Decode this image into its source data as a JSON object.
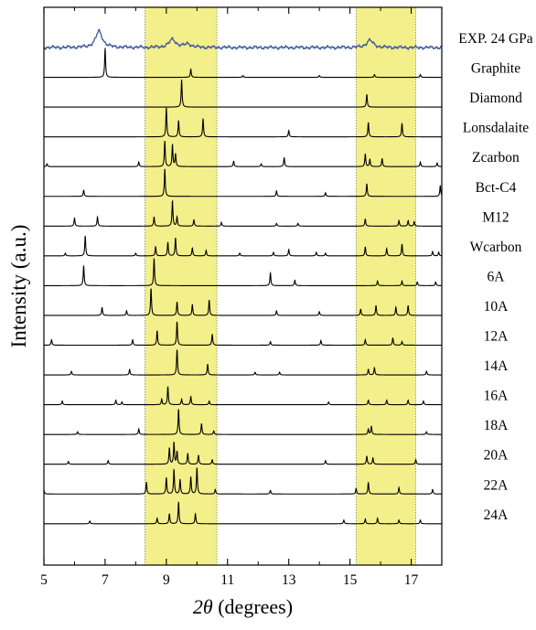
{
  "chart_data": {
    "type": "line",
    "xlabel": "2θ (degrees)",
    "ylabel": "Intensity  (a.u.)",
    "xlim": [
      5,
      18
    ],
    "xticks": [
      5,
      7,
      9,
      11,
      13,
      15,
      17
    ],
    "minor_xticks": [
      6,
      8,
      10,
      12,
      14,
      16
    ],
    "highlight_bands": [
      {
        "from": 8.3,
        "to": 10.65,
        "color": "#f3ef8a"
      },
      {
        "from": 15.2,
        "to": 17.15,
        "color": "#f3ef8a"
      }
    ],
    "grid": false,
    "series": [
      {
        "name": "EXP. 24 GPa",
        "color": "#3d5a9e",
        "kind": "experimental",
        "peaks": [
          [
            6.8,
            18
          ],
          [
            9.2,
            9
          ],
          [
            9.7,
            4
          ],
          [
            15.65,
            8
          ]
        ]
      },
      {
        "name": "Graphite",
        "color": "#000000",
        "peaks": [
          [
            7.0,
            32
          ],
          [
            9.8,
            9
          ],
          [
            11.5,
            2
          ],
          [
            14.0,
            2
          ],
          [
            15.8,
            3
          ],
          [
            17.3,
            3
          ]
        ]
      },
      {
        "name": "Diamond",
        "color": "#000000",
        "peaks": [
          [
            9.5,
            30
          ],
          [
            15.55,
            14
          ]
        ]
      },
      {
        "name": "Lonsdalaite",
        "color": "#000000",
        "peaks": [
          [
            9.0,
            32
          ],
          [
            9.4,
            18
          ],
          [
            10.2,
            20
          ],
          [
            13.0,
            7
          ],
          [
            15.6,
            16
          ],
          [
            16.7,
            15
          ]
        ]
      },
      {
        "name": "Zcarbon",
        "color": "#000000",
        "peaks": [
          [
            5.1,
            3
          ],
          [
            8.1,
            5
          ],
          [
            8.95,
            28
          ],
          [
            9.2,
            24
          ],
          [
            9.3,
            14
          ],
          [
            11.2,
            6
          ],
          [
            12.1,
            3
          ],
          [
            12.85,
            10
          ],
          [
            15.5,
            14
          ],
          [
            15.65,
            8
          ],
          [
            16.05,
            9
          ],
          [
            17.3,
            5
          ],
          [
            17.85,
            4
          ]
        ]
      },
      {
        "name": "Bct-C4",
        "color": "#000000",
        "peaks": [
          [
            6.3,
            7
          ],
          [
            8.95,
            30
          ],
          [
            12.6,
            6
          ],
          [
            14.2,
            4
          ],
          [
            15.55,
            14
          ],
          [
            17.95,
            12
          ]
        ]
      },
      {
        "name": "M12",
        "color": "#000000",
        "peaks": [
          [
            6.0,
            9
          ],
          [
            6.75,
            10
          ],
          [
            8.6,
            10
          ],
          [
            9.2,
            28
          ],
          [
            9.35,
            10
          ],
          [
            9.9,
            7
          ],
          [
            10.8,
            4
          ],
          [
            12.6,
            3
          ],
          [
            13.3,
            3
          ],
          [
            15.5,
            8
          ],
          [
            16.6,
            6
          ],
          [
            16.9,
            6
          ],
          [
            17.1,
            5
          ]
        ]
      },
      {
        "name": "Wcarbon",
        "color": "#000000",
        "peaks": [
          [
            5.7,
            3
          ],
          [
            6.35,
            22
          ],
          [
            8.0,
            3
          ],
          [
            8.65,
            10
          ],
          [
            9.05,
            15
          ],
          [
            9.3,
            20
          ],
          [
            9.85,
            9
          ],
          [
            10.3,
            6
          ],
          [
            11.4,
            3
          ],
          [
            12.5,
            4
          ],
          [
            13.0,
            7
          ],
          [
            13.9,
            4
          ],
          [
            14.2,
            3
          ],
          [
            15.5,
            10
          ],
          [
            16.2,
            8
          ],
          [
            16.7,
            13
          ],
          [
            17.7,
            5
          ],
          [
            17.9,
            4
          ]
        ]
      },
      {
        "name": "6A",
        "color": "#000000",
        "peaks": [
          [
            6.3,
            22
          ],
          [
            8.6,
            30
          ],
          [
            12.4,
            14
          ],
          [
            13.2,
            6
          ],
          [
            15.9,
            5
          ],
          [
            16.7,
            5
          ],
          [
            17.2,
            4
          ],
          [
            17.8,
            4
          ]
        ]
      },
      {
        "name": "10A",
        "color": "#000000",
        "peaks": [
          [
            6.9,
            9
          ],
          [
            7.7,
            5
          ],
          [
            8.5,
            30
          ],
          [
            9.35,
            15
          ],
          [
            9.85,
            12
          ],
          [
            10.4,
            17
          ],
          [
            12.6,
            5
          ],
          [
            14.0,
            4
          ],
          [
            15.35,
            7
          ],
          [
            15.85,
            11
          ],
          [
            16.5,
            9
          ],
          [
            16.9,
            11
          ]
        ]
      },
      {
        "name": "12A",
        "color": "#000000",
        "peaks": [
          [
            5.25,
            6
          ],
          [
            7.9,
            6
          ],
          [
            8.7,
            16
          ],
          [
            9.35,
            26
          ],
          [
            10.5,
            12
          ],
          [
            12.4,
            4
          ],
          [
            14.05,
            5
          ],
          [
            15.5,
            6
          ],
          [
            16.4,
            8
          ],
          [
            16.7,
            4
          ]
        ]
      },
      {
        "name": "14A",
        "color": "#000000",
        "peaks": [
          [
            5.9,
            4
          ],
          [
            7.8,
            6
          ],
          [
            9.35,
            28
          ],
          [
            10.35,
            12
          ],
          [
            11.9,
            3
          ],
          [
            12.7,
            3
          ],
          [
            15.6,
            6
          ],
          [
            15.8,
            8
          ],
          [
            17.5,
            4
          ]
        ]
      },
      {
        "name": "16A",
        "color": "#000000",
        "peaks": [
          [
            5.6,
            4
          ],
          [
            7.35,
            5
          ],
          [
            7.55,
            3
          ],
          [
            8.85,
            6
          ],
          [
            9.05,
            20
          ],
          [
            9.5,
            6
          ],
          [
            9.8,
            9
          ],
          [
            10.4,
            4
          ],
          [
            14.3,
            3
          ],
          [
            15.6,
            5
          ],
          [
            16.2,
            5
          ],
          [
            16.9,
            5
          ],
          [
            17.4,
            4
          ]
        ]
      },
      {
        "name": "18A",
        "color": "#000000",
        "peaks": [
          [
            6.1,
            3
          ],
          [
            8.1,
            6
          ],
          [
            9.4,
            28
          ],
          [
            10.15,
            12
          ],
          [
            10.55,
            4
          ],
          [
            15.6,
            6
          ],
          [
            15.7,
            9
          ],
          [
            17.5,
            3
          ]
        ]
      },
      {
        "name": "20A",
        "color": "#000000",
        "peaks": [
          [
            5.8,
            3
          ],
          [
            7.1,
            4
          ],
          [
            9.1,
            18
          ],
          [
            9.25,
            24
          ],
          [
            9.35,
            14
          ],
          [
            9.7,
            12
          ],
          [
            10.05,
            10
          ],
          [
            10.5,
            5
          ],
          [
            14.2,
            4
          ],
          [
            15.55,
            9
          ],
          [
            15.75,
            7
          ],
          [
            17.15,
            5
          ]
        ]
      },
      {
        "name": "22A",
        "color": "#000000",
        "peaks": [
          [
            5.0,
            4
          ],
          [
            8.35,
            13
          ],
          [
            9.0,
            18
          ],
          [
            9.25,
            27
          ],
          [
            9.45,
            16
          ],
          [
            9.8,
            19
          ],
          [
            10.0,
            29
          ],
          [
            10.6,
            5
          ],
          [
            12.4,
            4
          ],
          [
            15.2,
            6
          ],
          [
            15.6,
            13
          ],
          [
            16.6,
            7
          ],
          [
            17.7,
            5
          ]
        ]
      },
      {
        "name": "24A",
        "color": "#000000",
        "peaks": [
          [
            6.5,
            3
          ],
          [
            8.7,
            6
          ],
          [
            9.1,
            11
          ],
          [
            9.4,
            24
          ],
          [
            9.95,
            11
          ],
          [
            14.8,
            4
          ],
          [
            15.5,
            5
          ],
          [
            15.9,
            6
          ],
          [
            16.6,
            4
          ],
          [
            17.3,
            4
          ]
        ]
      }
    ]
  }
}
